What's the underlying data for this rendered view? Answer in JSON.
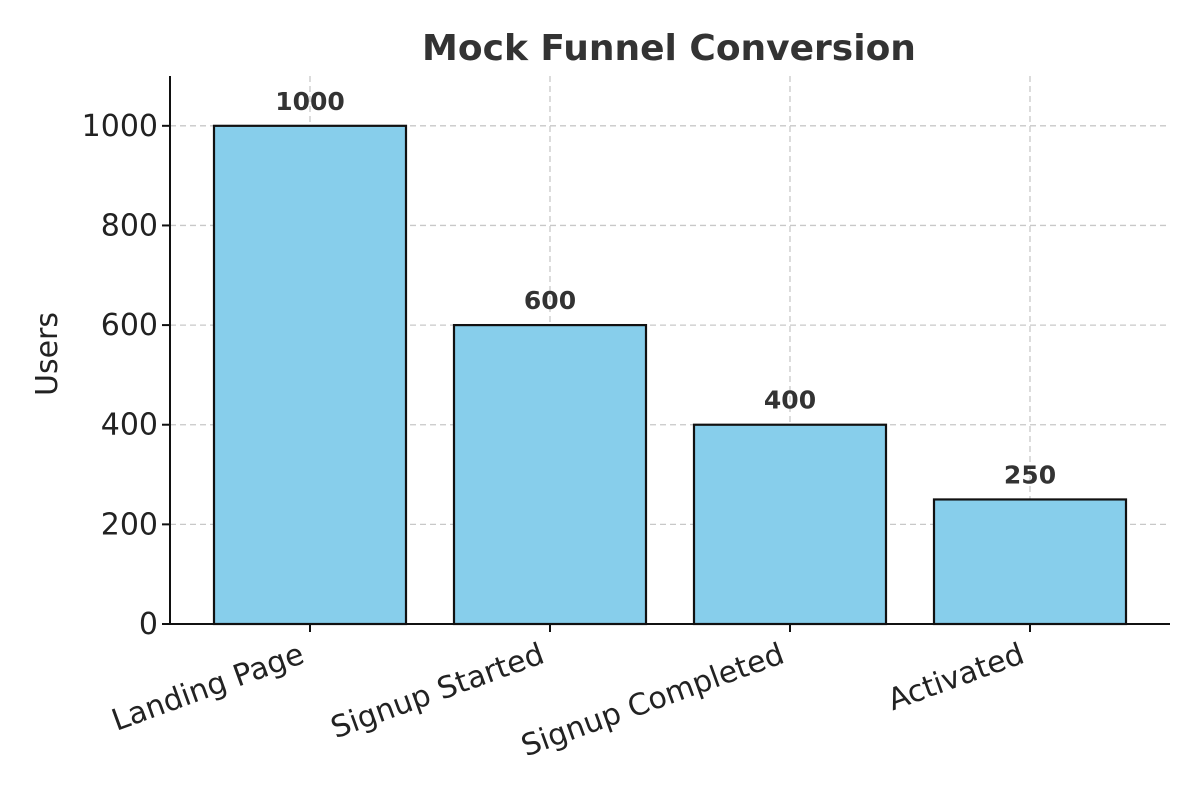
{
  "chart_data": {
    "type": "bar",
    "title": "Mock Funnel Conversion",
    "xlabel": "",
    "ylabel": "Users",
    "categories": [
      "Landing Page",
      "Signup Started",
      "Signup Completed",
      "Activated"
    ],
    "values": [
      1000,
      600,
      400,
      250
    ],
    "data_labels": [
      "1000",
      "600",
      "400",
      "250"
    ],
    "ylim": [
      0,
      1100
    ],
    "yticks": [
      0,
      200,
      400,
      600,
      800,
      1000
    ],
    "grid": true,
    "bar_color": "#87CEEB",
    "edge_color": "#111111"
  }
}
